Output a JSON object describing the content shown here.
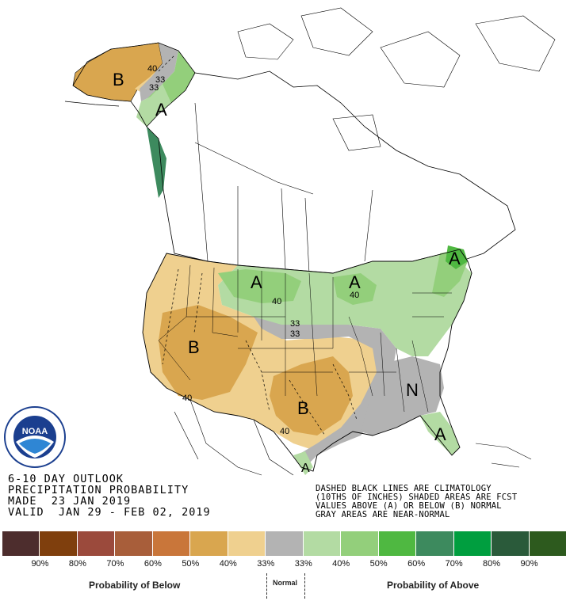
{
  "title": {
    "line1": "6-10 DAY OUTLOOK",
    "line2": "PRECIPITATION PROBABILITY",
    "line3": "MADE  23 JAN 2019",
    "line4": "VALID  JAN 29 - FEB 02, 2019"
  },
  "notes": {
    "line1": "DASHED BLACK LINES ARE CLIMATOLOGY",
    "line2": "(10THS OF INCHES) SHADED AREAS ARE FCST",
    "line3": "VALUES ABOVE (A) OR BELOW (B) NORMAL",
    "line4": "GRAY AREAS ARE NEAR-NORMAL"
  },
  "legend": {
    "colors": [
      "#4d2d2d",
      "#7f3f0d",
      "#9b4a3c",
      "#a85e3a",
      "#c9763a",
      "#d9a64f",
      "#efd08f",
      "#b3b3b3",
      "#b3dba3",
      "#93cf7b",
      "#4fb841",
      "#3d8a5e",
      "#009e3f",
      "#2a5a3a",
      "#2d5a1e"
    ],
    "labels": [
      "90%",
      "80%",
      "70%",
      "60%",
      "50%",
      "40%",
      "33%",
      "33%",
      "40%",
      "50%",
      "60%",
      "70%",
      "80%",
      "90%"
    ],
    "below_label": "Probability of Below",
    "normal_label": "Normal",
    "above_label": "Probability of Above"
  },
  "map": {
    "region_labels": [
      "B",
      "A",
      "A",
      "A",
      "A",
      "B",
      "B",
      "N",
      "A",
      "A"
    ],
    "contour_labels": [
      "40",
      "33",
      "33",
      "40",
      "40",
      "33",
      "33",
      "40",
      "40"
    ],
    "land_color": "#ffffff",
    "border_color": "#000000"
  },
  "logo": {
    "text": "NOAA",
    "ring_text": "NATIONAL OCEANIC AND ATMOSPHERIC ADMINISTRATION"
  }
}
